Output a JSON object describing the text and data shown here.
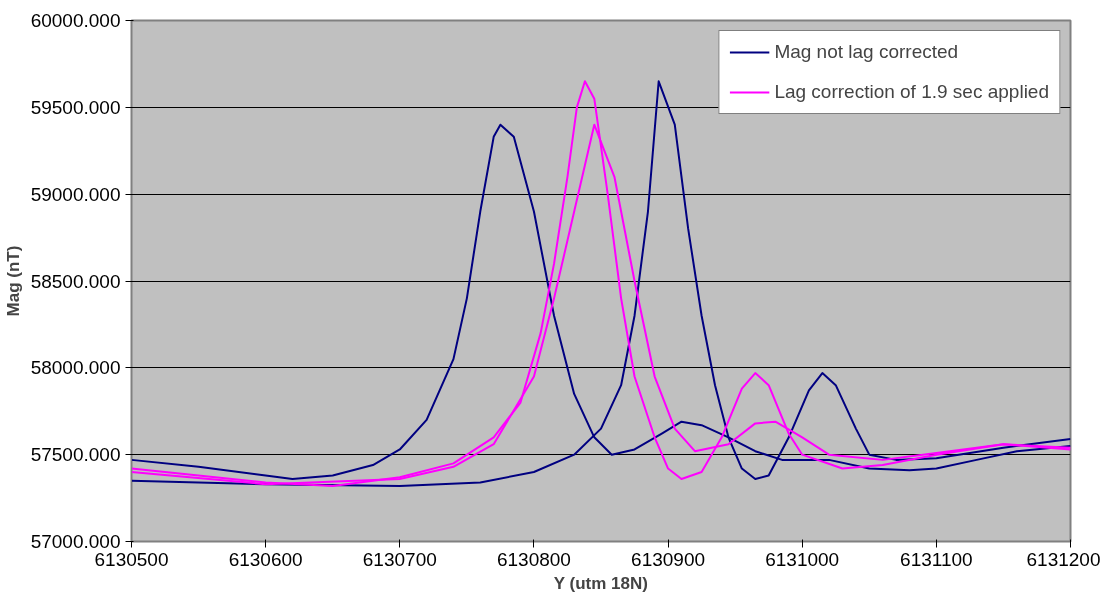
{
  "chart_data": {
    "type": "line",
    "xlabel": "Y (utm 18N)",
    "ylabel": "Mag (nT)",
    "xlim": [
      6130500,
      6131200
    ],
    "xticks": [
      6130500,
      6130600,
      6130700,
      6130800,
      6130900,
      6131000,
      6131100,
      6131200
    ],
    "ylim": [
      57000,
      60000
    ],
    "yticks": [
      {
        "value": 57000,
        "label": "57000.000"
      },
      {
        "value": 57500,
        "label": "57500.000"
      },
      {
        "value": 58000,
        "label": "58000.000"
      },
      {
        "value": 58500,
        "label": "58500.000"
      },
      {
        "value": 59000,
        "label": "59000.000"
      },
      {
        "value": 59500,
        "label": "59500.000"
      },
      {
        "value": 60000,
        "label": "60000.000"
      }
    ],
    "grid": "y",
    "legend": "top right",
    "marker": "none",
    "line_style": "solid",
    "series": [
      {
        "name": "Mag not lag corrected",
        "color": "#000080",
        "x": [
          6130500,
          6130550,
          6130600,
          6130620,
          6130650,
          6130680,
          6130700,
          6130720,
          6130740,
          6130750,
          6130760,
          6130770,
          6130775,
          6130785,
          6130800,
          6130815,
          6130830,
          6130845,
          6130858,
          6130875,
          6130895,
          6130910,
          6130925,
          6130945,
          6130965,
          6130985,
          6131020,
          6131050,
          6131080,
          6131100,
          6131130,
          6131160,
          6131200
        ],
        "values": [
          57470,
          57430,
          57380,
          57360,
          57380,
          57440,
          57530,
          57700,
          58050,
          58400,
          58900,
          59330,
          59400,
          59330,
          58900,
          58300,
          57850,
          57600,
          57500,
          57530,
          57620,
          57690,
          57670,
          57600,
          57520,
          57470,
          57470,
          57420,
          57410,
          57420,
          57470,
          57520,
          57550
        ]
      },
      {
        "color": "#000080",
        "x": [
          6130500,
          6130600,
          6130700,
          6130760,
          6130800,
          6130830,
          6130850,
          6130865,
          6130875,
          6130885,
          6130893,
          6130905,
          6130915,
          6130925,
          6130935,
          6130945,
          6130955,
          6130965,
          6130975,
          6130990,
          6131005,
          6131015,
          6131025,
          6131040,
          6131050,
          6131070,
          6131100,
          6131150,
          6131200
        ],
        "values": [
          57350,
          57330,
          57320,
          57340,
          57400,
          57500,
          57650,
          57900,
          58300,
          58900,
          59650,
          59400,
          58800,
          58300,
          57900,
          57600,
          57420,
          57360,
          57380,
          57600,
          57870,
          57970,
          57900,
          57650,
          57500,
          57470,
          57480,
          57540,
          57590
        ]
      },
      {
        "name": "Lag correction of 1.9 sec applied",
        "color": "#ff00ff",
        "x": [
          6130500,
          6130600,
          6130650,
          6130700,
          6130740,
          6130770,
          6130790,
          6130805,
          6130815,
          6130825,
          6130832,
          6130838,
          6130845,
          6130855,
          6130865,
          6130875,
          6130890,
          6130900,
          6130910,
          6130925,
          6130940,
          6130955,
          6130965,
          6130975,
          6130990,
          6131000,
          6131030,
          6131060,
          6131100,
          6131150,
          6131200
        ],
        "values": [
          57420,
          57340,
          57320,
          57370,
          57450,
          57600,
          57800,
          58200,
          58600,
          59100,
          59500,
          59650,
          59550,
          59000,
          58400,
          57950,
          57600,
          57420,
          57360,
          57400,
          57600,
          57880,
          57970,
          57900,
          57620,
          57500,
          57420,
          57440,
          57500,
          57560,
          57540
        ]
      },
      {
        "color": "#ff00ff",
        "x": [
          6130500,
          6130600,
          6130700,
          6130740,
          6130770,
          6130800,
          6130815,
          6130830,
          6130845,
          6130860,
          6130875,
          6130890,
          6130905,
          6130920,
          6130945,
          6130965,
          6130980,
          6131000,
          6131020,
          6131060,
          6131100,
          6131150,
          6131200
        ],
        "values": [
          57400,
          57330,
          57360,
          57430,
          57560,
          57950,
          58400,
          58900,
          59400,
          59100,
          58500,
          57950,
          57650,
          57520,
          57560,
          57680,
          57690,
          57600,
          57500,
          57470,
          57510,
          57560,
          57530
        ]
      }
    ]
  }
}
